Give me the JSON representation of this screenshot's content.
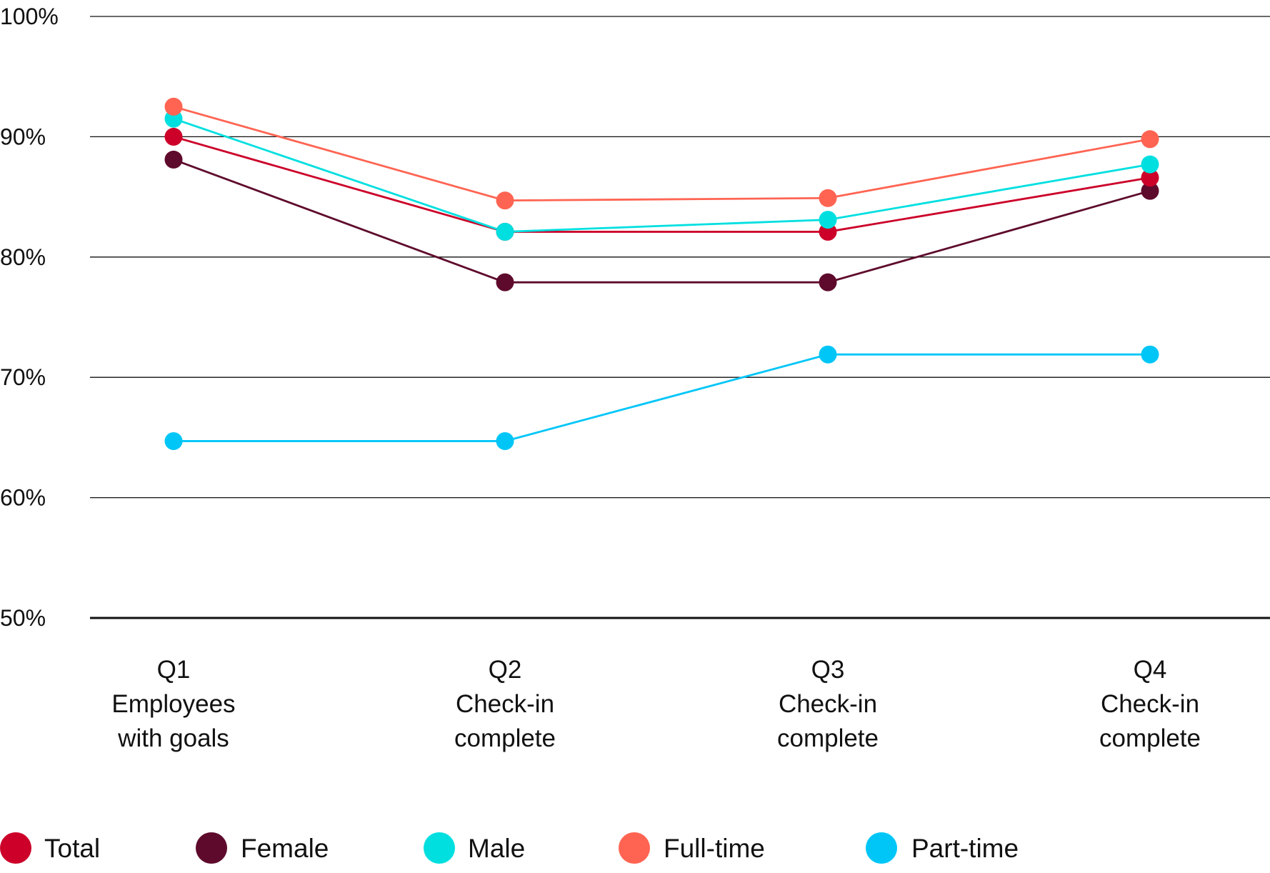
{
  "chart_data": {
    "type": "line",
    "categories": [
      [
        "Q1",
        "Employees",
        "with goals"
      ],
      [
        "Q2",
        "Check-in",
        "complete"
      ],
      [
        "Q3",
        "Check-in",
        "complete"
      ],
      [
        "Q4",
        "Check-in",
        "complete"
      ]
    ],
    "y_ticks": [
      "100%",
      "90%",
      "80%",
      "70%",
      "60%",
      "50%"
    ],
    "y_tick_values": [
      100,
      90,
      80,
      70,
      60,
      50
    ],
    "ylim": [
      50,
      100
    ],
    "grid": true,
    "legend_placement": "bottom",
    "series": [
      {
        "name": "Total",
        "color": "#cc0029",
        "values": [
          90,
          82.1,
          82.1,
          86.6
        ]
      },
      {
        "name": "Female",
        "color": "#5e0a2c",
        "values": [
          88.1,
          77.9,
          77.9,
          85.5
        ]
      },
      {
        "name": "Male",
        "color": "#00dfe0",
        "values": [
          91.5,
          82.1,
          83.1,
          87.7
        ]
      },
      {
        "name": "Full-time",
        "color": "#ff6452",
        "values": [
          92.5,
          84.7,
          84.9,
          89.8
        ]
      },
      {
        "name": "Part-time",
        "color": "#00c6f7",
        "values": [
          64.7,
          64.7,
          71.9,
          71.9
        ]
      }
    ]
  }
}
